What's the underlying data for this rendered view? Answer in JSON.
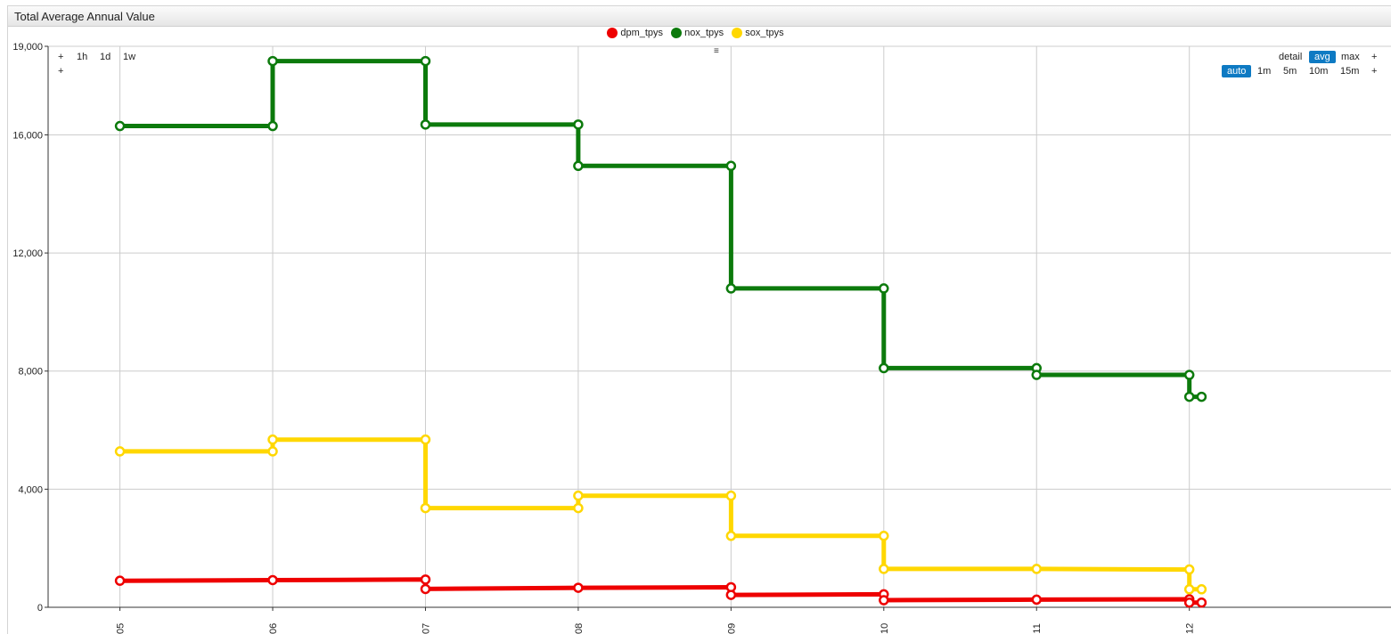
{
  "panel": {
    "title": "Total Average Annual Value"
  },
  "legend": {
    "items": [
      {
        "label": "dpm_tpys",
        "color": "#ee0000"
      },
      {
        "label": "nox_tpys",
        "color": "#0c7a0c"
      },
      {
        "label": "sox_tpys",
        "color": "#ffd700"
      }
    ]
  },
  "menu_icon": "hamburger-icon",
  "controls": {
    "left_plus_top": "+",
    "left_plus_bottom": "+",
    "ranges": [
      "1h",
      "1d",
      "1w"
    ],
    "right": {
      "aggregations": [
        "detail",
        "avg",
        "max"
      ],
      "active_aggregation": "avg",
      "plus_top": "+",
      "periods": [
        "auto",
        "1m",
        "5m",
        "10m",
        "15m"
      ],
      "active_period": "auto",
      "plus_bottom": "+"
    }
  },
  "chart_data": {
    "type": "line",
    "step": true,
    "title": "",
    "xlabel": "",
    "ylabel": "",
    "ylim": [
      0,
      19000
    ],
    "y_ticks": [
      "0",
      "4,000",
      "8,000",
      "12,000",
      "16,000",
      "19,000"
    ],
    "y_tick_values": [
      0,
      4000,
      8000,
      12000,
      16000,
      19000
    ],
    "x_ticks": [
      "2005",
      "2006",
      "2007",
      "2008",
      "2009",
      "2010",
      "2011",
      "2012"
    ],
    "x_tick_values": [
      2005,
      2006,
      2007,
      2008,
      2009,
      2010,
      2011,
      2012
    ],
    "xlim": [
      2004.53,
      2013.32
    ],
    "grid": true,
    "legend_position": "top-center",
    "series": [
      {
        "name": "dpm_tpys",
        "color": "#ee0000",
        "points": [
          [
            2005,
            900
          ],
          [
            2006,
            920
          ],
          [
            2007,
            940
          ],
          [
            2007,
            620
          ],
          [
            2008,
            660
          ],
          [
            2009,
            680
          ],
          [
            2009,
            420
          ],
          [
            2010,
            440
          ],
          [
            2010,
            240
          ],
          [
            2011,
            260
          ],
          [
            2012,
            270
          ],
          [
            2012,
            160
          ],
          [
            2012.08,
            160
          ]
        ]
      },
      {
        "name": "nox_tpys",
        "color": "#0c7a0c",
        "points": [
          [
            2005,
            16300
          ],
          [
            2006,
            16300
          ],
          [
            2006,
            18500
          ],
          [
            2007,
            18500
          ],
          [
            2007,
            16350
          ],
          [
            2008,
            16350
          ],
          [
            2008,
            14950
          ],
          [
            2009,
            14950
          ],
          [
            2009,
            10800
          ],
          [
            2010,
            10800
          ],
          [
            2010,
            8100
          ],
          [
            2011,
            8100
          ],
          [
            2011,
            7870
          ],
          [
            2012,
            7870
          ],
          [
            2012,
            7130
          ],
          [
            2012.08,
            7130
          ]
        ]
      },
      {
        "name": "sox_tpys",
        "color": "#ffd700",
        "points": [
          [
            2005,
            5280
          ],
          [
            2006,
            5280
          ],
          [
            2006,
            5680
          ],
          [
            2007,
            5680
          ],
          [
            2007,
            3360
          ],
          [
            2008,
            3360
          ],
          [
            2008,
            3780
          ],
          [
            2009,
            3780
          ],
          [
            2009,
            2420
          ],
          [
            2010,
            2420
          ],
          [
            2010,
            1300
          ],
          [
            2011,
            1300
          ],
          [
            2012,
            1280
          ],
          [
            2012,
            610
          ],
          [
            2012.08,
            610
          ]
        ]
      }
    ]
  }
}
